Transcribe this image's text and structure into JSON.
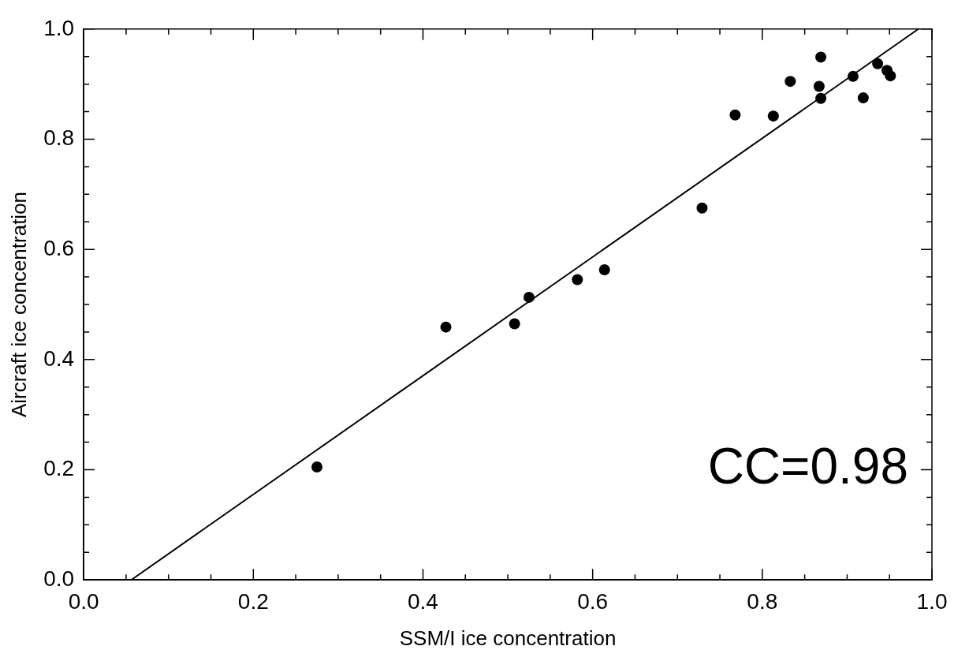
{
  "chart_data": {
    "type": "scatter",
    "xlabel": "SSM/I ice concentration",
    "ylabel": "Aircraft ice concentration",
    "annotations": [
      "CC=0.98"
    ],
    "marker": "circle",
    "legend": false,
    "grid": false,
    "xlim": [
      0,
      1
    ],
    "ylim": [
      0,
      1
    ],
    "xticks": [
      {
        "value": 0,
        "label": "0.0"
      },
      {
        "value": 0.05,
        "label": null
      },
      {
        "value": 0.1,
        "label": null
      },
      {
        "value": 0.15,
        "label": null
      },
      0.2,
      {
        "value": 0.25,
        "label": null
      },
      {
        "value": 0.3,
        "label": null
      },
      {
        "value": 0.35,
        "label": null
      },
      0.4,
      {
        "value": 0.45,
        "label": null
      },
      {
        "value": 0.5,
        "label": null
      },
      {
        "value": 0.55,
        "label": null
      },
      0.6,
      {
        "value": 0.65,
        "label": null
      },
      {
        "value": 0.7,
        "label": null
      },
      {
        "value": 0.75,
        "label": null
      },
      0.8,
      {
        "value": 0.85,
        "label": null
      },
      {
        "value": 0.9,
        "label": null
      },
      {
        "value": 0.95,
        "label": null
      },
      {
        "value": 1,
        "label": "1.0"
      }
    ],
    "yticks": [
      {
        "value": 0,
        "label": "0.0"
      },
      {
        "value": 0.05,
        "label": null
      },
      {
        "value": 0.1,
        "label": null
      },
      {
        "value": 0.15,
        "label": null
      },
      0.2,
      {
        "value": 0.25,
        "label": null
      },
      {
        "value": 0.3,
        "label": null
      },
      {
        "value": 0.35,
        "label": null
      },
      0.4,
      {
        "value": 0.45,
        "label": null
      },
      {
        "value": 0.5,
        "label": null
      },
      {
        "value": 0.55,
        "label": null
      },
      0.6,
      {
        "value": 0.65,
        "label": null
      },
      {
        "value": 0.7,
        "label": null
      },
      {
        "value": 0.75,
        "label": null
      },
      0.8,
      {
        "value": 0.85,
        "label": null
      },
      {
        "value": 0.9,
        "label": null
      },
      {
        "value": 0.95,
        "label": null
      },
      {
        "value": 1,
        "label": "1.0"
      }
    ],
    "series": [
      {
        "color": "#000000",
        "x": [
          0.275,
          0.427,
          0.508,
          0.525,
          0.582,
          0.614,
          0.729,
          0.768,
          0.813,
          0.833,
          0.869,
          0.867,
          0.869,
          0.907,
          0.919,
          0.936,
          0.947,
          0.951
        ],
        "values": [
          0.205,
          0.459,
          0.465,
          0.513,
          0.545,
          0.563,
          0.675,
          0.844,
          0.842,
          0.905,
          0.949,
          0.896,
          0.874,
          0.914,
          0.875,
          0.937,
          0.925,
          0.915
        ]
      },
      {
        "type": "line",
        "marker": "none",
        "color": "#000000",
        "x": [
          0.056,
          0.984
        ],
        "values": [
          0,
          1
        ]
      }
    ]
  }
}
